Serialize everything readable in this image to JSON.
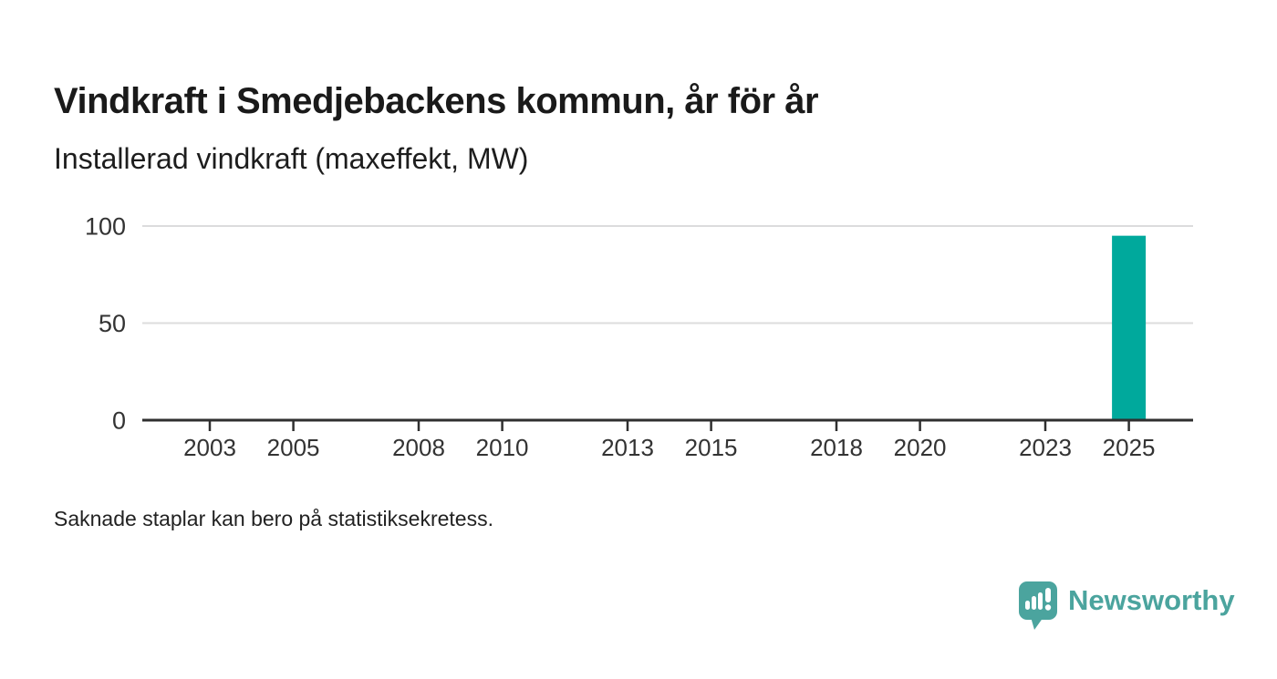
{
  "header": {
    "title": "Vindkraft i Smedjebackens kommun, år för år",
    "subtitle": "Installerad vindkraft (maxeffekt, MW)"
  },
  "footnote": "Saknade staplar kan bero på statistiksekretess.",
  "branding": {
    "name": "Newsworthy",
    "icon": "bar-chart-speech-bubble-icon"
  },
  "colors": {
    "bar": "#00a99c",
    "brand": "#4ba49e",
    "grid": "#dcdcdd",
    "axis": "#2f2f2f",
    "axis_text": "#333333",
    "title_text": "#1a1a1a"
  },
  "chart_data": {
    "type": "bar",
    "title": "Vindkraft i Smedjebackens kommun, år för år",
    "subtitle": "Installerad vindkraft (maxeffekt, MW)",
    "xlabel": "",
    "ylabel": "Installerad vindkraft (maxeffekt, MW)",
    "categories": [
      2003,
      2004,
      2005,
      2006,
      2007,
      2008,
      2009,
      2010,
      2011,
      2012,
      2013,
      2014,
      2015,
      2016,
      2017,
      2018,
      2019,
      2020,
      2021,
      2022,
      2023,
      2024,
      2025
    ],
    "values": [
      null,
      null,
      null,
      null,
      null,
      null,
      null,
      null,
      null,
      null,
      null,
      null,
      null,
      null,
      null,
      null,
      null,
      null,
      null,
      null,
      null,
      null,
      95
    ],
    "xticks": [
      "2003",
      "2005",
      "2008",
      "2010",
      "2013",
      "2015",
      "2018",
      "2020",
      "2023",
      "2025"
    ],
    "yticks": [
      0,
      50,
      100
    ],
    "ylim": [
      0,
      100
    ],
    "grid": "horizontal",
    "legend": "none",
    "note": "Saknade staplar kan bero på statistiksekretess."
  }
}
